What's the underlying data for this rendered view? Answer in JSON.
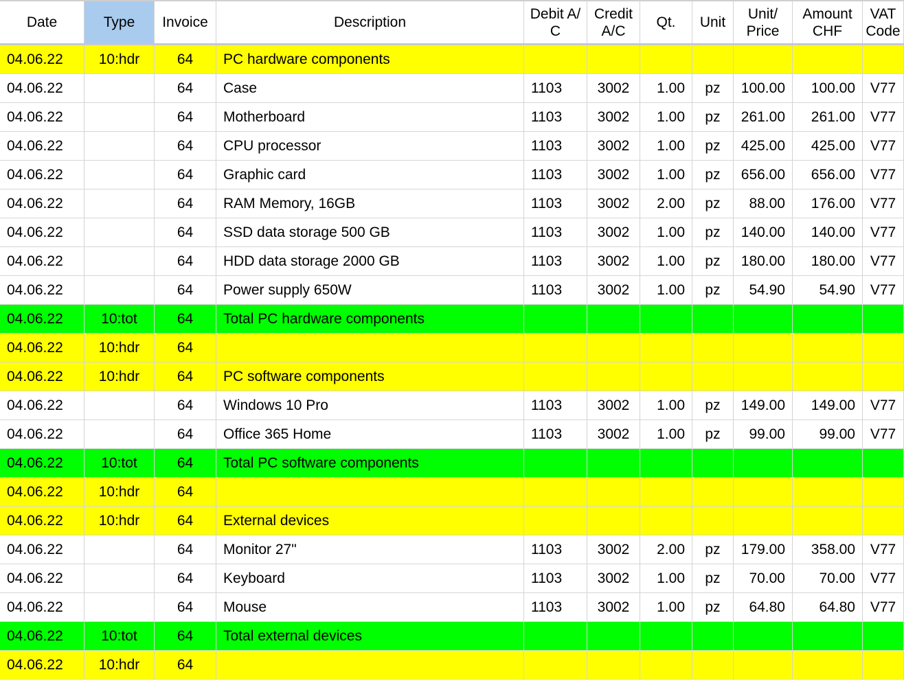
{
  "columns": [
    {
      "key": "date",
      "label": "Date"
    },
    {
      "key": "type",
      "label": "Type"
    },
    {
      "key": "invoice",
      "label": "Invoice"
    },
    {
      "key": "description",
      "label": "Description"
    },
    {
      "key": "debit",
      "label": "Debit A/\nC"
    },
    {
      "key": "credit",
      "label": "Credit\nA/C"
    },
    {
      "key": "qty",
      "label": "Qt."
    },
    {
      "key": "unit",
      "label": "Unit"
    },
    {
      "key": "price",
      "label": "Unit/\nPrice"
    },
    {
      "key": "amount",
      "label": "Amount\nCHF"
    },
    {
      "key": "vat",
      "label": "VAT\nCode"
    }
  ],
  "selected_column": "type",
  "colors": {
    "header_row": "#ffff00",
    "total_row": "#00ff00",
    "item_row": "#ffffff",
    "selected_header": "#a9cbee"
  },
  "rows": [
    {
      "kind": "hdr",
      "date": "04.06.22",
      "type": "10:hdr",
      "invoice": "64",
      "description": "PC hardware components",
      "debit": "",
      "credit": "",
      "qty": "",
      "unit": "",
      "price": "",
      "amount": "",
      "vat": ""
    },
    {
      "kind": "item",
      "date": "04.06.22",
      "type": "",
      "invoice": "64",
      "description": "Case",
      "debit": "1103",
      "credit": "3002",
      "qty": "1.00",
      "unit": "pz",
      "price": "100.00",
      "amount": "100.00",
      "vat": "V77"
    },
    {
      "kind": "item",
      "date": "04.06.22",
      "type": "",
      "invoice": "64",
      "description": "Motherboard",
      "debit": "1103",
      "credit": "3002",
      "qty": "1.00",
      "unit": "pz",
      "price": "261.00",
      "amount": "261.00",
      "vat": "V77"
    },
    {
      "kind": "item",
      "date": "04.06.22",
      "type": "",
      "invoice": "64",
      "description": "CPU processor",
      "debit": "1103",
      "credit": "3002",
      "qty": "1.00",
      "unit": "pz",
      "price": "425.00",
      "amount": "425.00",
      "vat": "V77"
    },
    {
      "kind": "item",
      "date": "04.06.22",
      "type": "",
      "invoice": "64",
      "description": "Graphic card",
      "debit": "1103",
      "credit": "3002",
      "qty": "1.00",
      "unit": "pz",
      "price": "656.00",
      "amount": "656.00",
      "vat": "V77"
    },
    {
      "kind": "item",
      "date": "04.06.22",
      "type": "",
      "invoice": "64",
      "description": "RAM Memory, 16GB",
      "debit": "1103",
      "credit": "3002",
      "qty": "2.00",
      "unit": "pz",
      "price": "88.00",
      "amount": "176.00",
      "vat": "V77"
    },
    {
      "kind": "item",
      "date": "04.06.22",
      "type": "",
      "invoice": "64",
      "description": "SSD data storage 500 GB",
      "debit": "1103",
      "credit": "3002",
      "qty": "1.00",
      "unit": "pz",
      "price": "140.00",
      "amount": "140.00",
      "vat": "V77"
    },
    {
      "kind": "item",
      "date": "04.06.22",
      "type": "",
      "invoice": "64",
      "description": "HDD data storage 2000 GB",
      "debit": "1103",
      "credit": "3002",
      "qty": "1.00",
      "unit": "pz",
      "price": "180.00",
      "amount": "180.00",
      "vat": "V77"
    },
    {
      "kind": "item",
      "date": "04.06.22",
      "type": "",
      "invoice": "64",
      "description": "Power supply 650W",
      "debit": "1103",
      "credit": "3002",
      "qty": "1.00",
      "unit": "pz",
      "price": "54.90",
      "amount": "54.90",
      "vat": "V77"
    },
    {
      "kind": "tot",
      "date": "04.06.22",
      "type": "10:tot",
      "invoice": "64",
      "description": "Total PC hardware components",
      "debit": "",
      "credit": "",
      "qty": "",
      "unit": "",
      "price": "",
      "amount": "",
      "vat": ""
    },
    {
      "kind": "hdr",
      "date": "04.06.22",
      "type": "10:hdr",
      "invoice": "64",
      "description": "",
      "debit": "",
      "credit": "",
      "qty": "",
      "unit": "",
      "price": "",
      "amount": "",
      "vat": ""
    },
    {
      "kind": "hdr",
      "date": "04.06.22",
      "type": "10:hdr",
      "invoice": "64",
      "description": "PC software components",
      "debit": "",
      "credit": "",
      "qty": "",
      "unit": "",
      "price": "",
      "amount": "",
      "vat": ""
    },
    {
      "kind": "item",
      "date": "04.06.22",
      "type": "",
      "invoice": "64",
      "description": "Windows 10 Pro",
      "debit": "1103",
      "credit": "3002",
      "qty": "1.00",
      "unit": "pz",
      "price": "149.00",
      "amount": "149.00",
      "vat": "V77"
    },
    {
      "kind": "item",
      "date": "04.06.22",
      "type": "",
      "invoice": "64",
      "description": "Office 365 Home",
      "debit": "1103",
      "credit": "3002",
      "qty": "1.00",
      "unit": "pz",
      "price": "99.00",
      "amount": "99.00",
      "vat": "V77"
    },
    {
      "kind": "tot",
      "date": "04.06.22",
      "type": "10:tot",
      "invoice": "64",
      "description": "Total PC software components",
      "debit": "",
      "credit": "",
      "qty": "",
      "unit": "",
      "price": "",
      "amount": "",
      "vat": ""
    },
    {
      "kind": "hdr",
      "date": "04.06.22",
      "type": "10:hdr",
      "invoice": "64",
      "description": "",
      "debit": "",
      "credit": "",
      "qty": "",
      "unit": "",
      "price": "",
      "amount": "",
      "vat": ""
    },
    {
      "kind": "hdr",
      "date": "04.06.22",
      "type": "10:hdr",
      "invoice": "64",
      "description": "External devices",
      "debit": "",
      "credit": "",
      "qty": "",
      "unit": "",
      "price": "",
      "amount": "",
      "vat": ""
    },
    {
      "kind": "item",
      "date": "04.06.22",
      "type": "",
      "invoice": "64",
      "description": "Monitor 27\"",
      "debit": "1103",
      "credit": "3002",
      "qty": "2.00",
      "unit": "pz",
      "price": "179.00",
      "amount": "358.00",
      "vat": "V77"
    },
    {
      "kind": "item",
      "date": "04.06.22",
      "type": "",
      "invoice": "64",
      "description": "Keyboard",
      "debit": "1103",
      "credit": "3002",
      "qty": "1.00",
      "unit": "pz",
      "price": "70.00",
      "amount": "70.00",
      "vat": "V77"
    },
    {
      "kind": "item",
      "date": "04.06.22",
      "type": "",
      "invoice": "64",
      "description": "Mouse",
      "debit": "1103",
      "credit": "3002",
      "qty": "1.00",
      "unit": "pz",
      "price": "64.80",
      "amount": "64.80",
      "vat": "V77"
    },
    {
      "kind": "tot",
      "date": "04.06.22",
      "type": "10:tot",
      "invoice": "64",
      "description": "Total external devices",
      "debit": "",
      "credit": "",
      "qty": "",
      "unit": "",
      "price": "",
      "amount": "",
      "vat": ""
    },
    {
      "kind": "hdr",
      "date": "04.06.22",
      "type": "10:hdr",
      "invoice": "64",
      "description": "",
      "debit": "",
      "credit": "",
      "qty": "",
      "unit": "",
      "price": "",
      "amount": "",
      "vat": ""
    }
  ]
}
